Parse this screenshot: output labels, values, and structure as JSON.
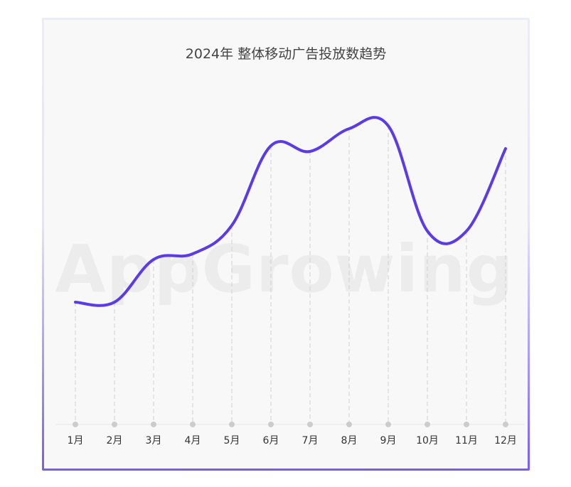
{
  "chart_data": {
    "type": "line",
    "title": "2024年 整体移动广告投放数趋势",
    "categories": [
      "1月",
      "2月",
      "3月",
      "4月",
      "5月",
      "6月",
      "7月",
      "8月",
      "9月",
      "10月",
      "11月",
      "12月"
    ],
    "series": [
      {
        "values": [
          43,
          43,
          58,
          60,
          70,
          98,
          96,
          104,
          105,
          68,
          68,
          97
        ]
      }
    ],
    "ylim": [
      0,
      115
    ],
    "grid": "vertical dashed lines",
    "line_color": "#5b3be8",
    "watermark": "AppGrowing"
  }
}
